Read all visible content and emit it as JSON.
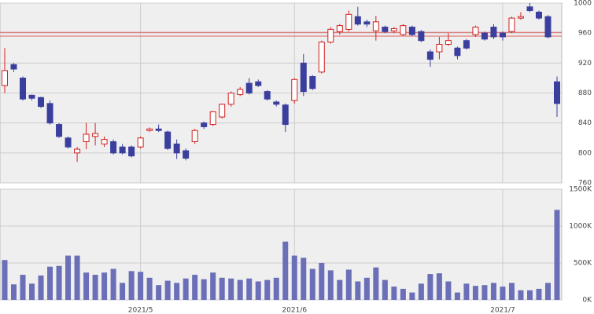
{
  "chart_data": [
    {
      "type": "candlestick",
      "up_color": "#d02020",
      "down_color": "#3a3f9e",
      "open": [
        890,
        918,
        900,
        877,
        874,
        866,
        838,
        820,
        800,
        815,
        822,
        812,
        815,
        808,
        808,
        808,
        830,
        832,
        828,
        812,
        803,
        815,
        840,
        838,
        848,
        865,
        878,
        893,
        895,
        882,
        868,
        864,
        870,
        920,
        902,
        908,
        948,
        962,
        965,
        982,
        975,
        963,
        968,
        963,
        958,
        968,
        962,
        935,
        935,
        945,
        940,
        950,
        958,
        960,
        968,
        960,
        962,
        980,
        995,
        988,
        982,
        895
      ],
      "high": [
        940,
        920,
        902,
        878,
        875,
        870,
        840,
        822,
        808,
        840,
        840,
        822,
        818,
        812,
        810,
        822,
        834,
        838,
        830,
        818,
        806,
        832,
        842,
        856,
        866,
        882,
        888,
        900,
        898,
        884,
        870,
        866,
        900,
        932,
        904,
        950,
        968,
        972,
        990,
        995,
        978,
        983,
        970,
        968,
        972,
        970,
        964,
        938,
        955,
        960,
        942,
        952,
        970,
        962,
        972,
        962,
        982,
        988,
        1000,
        990,
        984,
        902
      ],
      "low": [
        880,
        908,
        870,
        870,
        860,
        838,
        820,
        806,
        788,
        805,
        810,
        808,
        798,
        798,
        794,
        806,
        828,
        828,
        804,
        792,
        790,
        812,
        832,
        836,
        846,
        862,
        876,
        878,
        888,
        870,
        862,
        828,
        866,
        876,
        884,
        906,
        946,
        958,
        962,
        970,
        968,
        950,
        960,
        960,
        956,
        956,
        948,
        915,
        925,
        943,
        925,
        938,
        955,
        950,
        952,
        950,
        960,
        978,
        988,
        978,
        953,
        848
      ],
      "close": [
        910,
        912,
        872,
        873,
        862,
        840,
        822,
        808,
        805,
        825,
        826,
        818,
        800,
        800,
        796,
        820,
        832,
        830,
        806,
        800,
        793,
        830,
        835,
        855,
        865,
        880,
        885,
        880,
        890,
        872,
        865,
        838,
        898,
        882,
        886,
        948,
        965,
        970,
        985,
        972,
        972,
        975,
        962,
        966,
        970,
        958,
        950,
        925,
        945,
        950,
        930,
        940,
        968,
        952,
        955,
        955,
        980,
        982,
        990,
        980,
        955,
        866
      ],
      "ylim": [
        760,
        1000
      ],
      "yticks": [
        760,
        800,
        840,
        880,
        920,
        960,
        1000
      ],
      "ref_lines": [
        961,
        956
      ],
      "ref_color": "#e06060"
    },
    {
      "type": "bar",
      "color": "#6a6fb8",
      "categories": [
        null,
        null,
        null,
        null,
        null,
        null,
        null,
        null,
        null,
        null,
        null,
        null,
        null,
        null,
        null,
        "2021/5",
        null,
        null,
        null,
        null,
        null,
        null,
        null,
        null,
        null,
        null,
        null,
        null,
        null,
        null,
        null,
        null,
        "2021/6",
        null,
        null,
        null,
        null,
        null,
        null,
        null,
        null,
        null,
        null,
        null,
        null,
        null,
        null,
        null,
        null,
        null,
        null,
        null,
        null,
        null,
        null,
        "2021/7",
        null,
        null,
        null,
        null,
        null,
        null
      ],
      "values": [
        540000,
        210000,
        340000,
        220000,
        330000,
        450000,
        460000,
        600000,
        600000,
        370000,
        340000,
        370000,
        420000,
        230000,
        390000,
        380000,
        300000,
        200000,
        260000,
        230000,
        290000,
        340000,
        280000,
        370000,
        300000,
        290000,
        270000,
        290000,
        250000,
        270000,
        300000,
        790000,
        600000,
        570000,
        420000,
        500000,
        400000,
        270000,
        410000,
        250000,
        300000,
        440000,
        270000,
        180000,
        150000,
        100000,
        220000,
        350000,
        360000,
        250000,
        100000,
        220000,
        190000,
        200000,
        230000,
        180000,
        230000,
        130000,
        130000,
        150000,
        230000,
        1220000
      ],
      "ylim": [
        0,
        1500000
      ],
      "yticks": [
        {
          "value": 0,
          "label": "0K"
        },
        {
          "value": 500000,
          "label": "500K"
        },
        {
          "value": 1000000,
          "label": "1000K"
        },
        {
          "value": 1500000,
          "label": "1500K"
        }
      ]
    }
  ]
}
